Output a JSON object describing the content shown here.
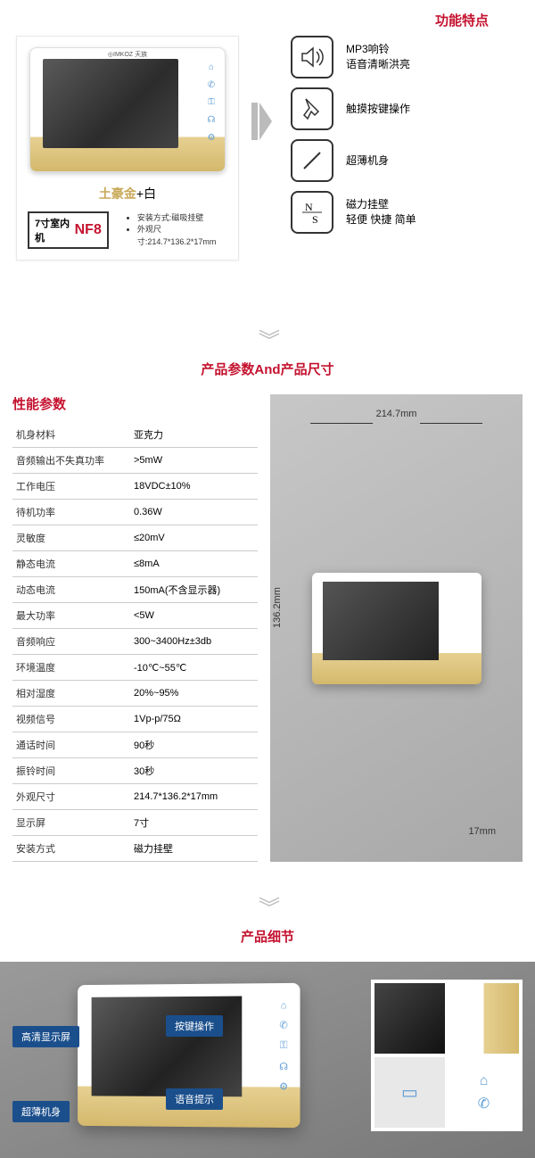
{
  "section1": {
    "features_title": "功能特点",
    "color_gold": "土豪金",
    "color_plus": "+",
    "color_white": "白",
    "model_prefix": "7寸室内机",
    "model_code": "NF8",
    "brand": "◎IMKOZ 天族",
    "install": [
      "安装方式:磁吸挂壁",
      "外观尺寸:214.7*136.2*17mm"
    ],
    "features": [
      {
        "icon": "speaker",
        "line1": "MP3响铃",
        "line2": "语音清晰洪亮"
      },
      {
        "icon": "touch",
        "line1": "触摸按键操作",
        "line2": ""
      },
      {
        "icon": "slim",
        "line1": "超薄机身",
        "line2": ""
      },
      {
        "icon": "magnet",
        "line1": "磁力挂壁",
        "line2": "轻便 快捷 简单"
      }
    ]
  },
  "section2": {
    "title": "产品参数And产品尺寸",
    "heading": "性能参数",
    "specs": [
      [
        "机身材料",
        "亚克力"
      ],
      [
        "音频输出不失真功率",
        ">5mW"
      ],
      [
        "工作电压",
        "18VDC±10%"
      ],
      [
        "待机功率",
        "0.36W"
      ],
      [
        "灵敏度",
        "≤20mV"
      ],
      [
        "静态电流",
        "≤8mA"
      ],
      [
        "动态电流",
        "150mA(不含显示器)"
      ],
      [
        "最大功率",
        "<5W"
      ],
      [
        "音频响应",
        "300~3400Hz±3db"
      ],
      [
        "环境温度",
        "-10℃~55℃"
      ],
      [
        "相对湿度",
        "20%~95%"
      ],
      [
        "视频信号",
        "1Vp-p/75Ω"
      ],
      [
        "通话时间",
        "90秒"
      ],
      [
        "振铃时间",
        "30秒"
      ],
      [
        "外观尺寸",
        "214.7*136.2*17mm"
      ],
      [
        "显示屏",
        "7寸"
      ],
      [
        "安装方式",
        "磁力挂壁"
      ]
    ],
    "dim_w": "214.7mm",
    "dim_h": "136.2mm",
    "dim_d": "17mm"
  },
  "section3": {
    "title": "产品细节",
    "callouts": [
      "高清显示屏",
      "超薄机身",
      "按键操作",
      "语音提示"
    ]
  }
}
